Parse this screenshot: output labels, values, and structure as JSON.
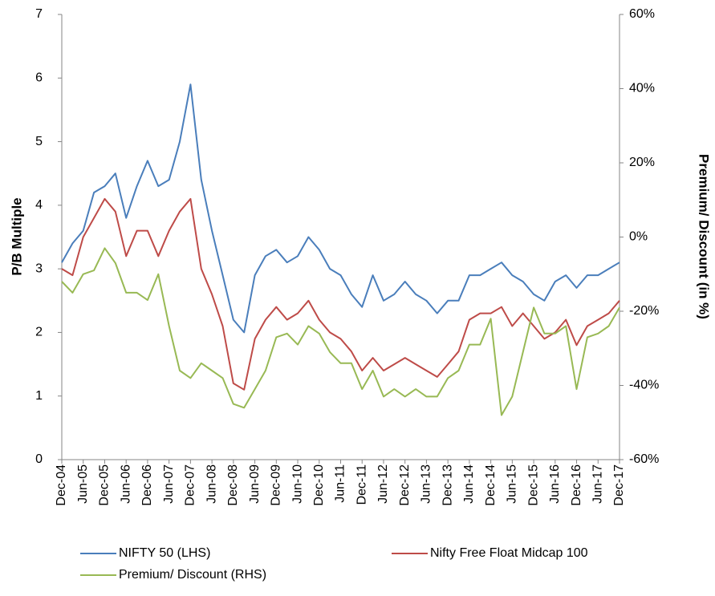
{
  "chart_data": {
    "type": "line",
    "y_label": "P/B Multiple",
    "y2_label": "Premium/ Discount (in %)",
    "categories": [
      "Dec-04",
      null,
      "Jun-05",
      null,
      "Dec-05",
      null,
      "Jun-06",
      null,
      "Dec-06",
      null,
      "Jun-07",
      null,
      "Dec-07",
      null,
      "Jun-08",
      null,
      "Dec-08",
      null,
      "Jun-09",
      null,
      "Dec-09",
      null,
      "Jun-10",
      null,
      "Dec-10",
      null,
      "Jun-11",
      null,
      "Dec-11",
      null,
      "Jun-12",
      null,
      "Dec-12",
      null,
      "Jun-13",
      null,
      "Dec-13",
      null,
      "Jun-14",
      null,
      "Dec-14",
      null,
      "Jun-15",
      null,
      "Dec-15",
      null,
      "Jun-16",
      null,
      "Dec-16",
      null,
      "Jun-17",
      null,
      "Dec-17"
    ],
    "series": [
      {
        "name": "NIFTY 50 (LHS)",
        "color": "#4a7ebb",
        "values": [
          3.1,
          3.4,
          3.6,
          4.2,
          4.3,
          4.5,
          3.8,
          4.3,
          4.7,
          4.3,
          4.4,
          5.0,
          5.9,
          4.4,
          3.6,
          2.9,
          2.2,
          2.0,
          2.9,
          3.2,
          3.3,
          3.1,
          3.2,
          3.5,
          3.3,
          3.0,
          2.9,
          2.6,
          2.4,
          2.9,
          2.5,
          2.6,
          2.8,
          2.6,
          2.5,
          2.3,
          2.5,
          2.5,
          2.9,
          2.9,
          3.0,
          3.1,
          2.9,
          2.8,
          2.6,
          2.5,
          2.8,
          2.9,
          2.7,
          2.9,
          2.9,
          3.0,
          3.1
        ]
      },
      {
        "name": "Nifty Free Float Midcap 100",
        "color": "#be4b48",
        "values": [
          3.0,
          2.9,
          3.5,
          3.8,
          4.1,
          3.9,
          3.2,
          3.6,
          3.6,
          3.2,
          3.6,
          3.9,
          4.1,
          3.0,
          2.6,
          2.1,
          1.2,
          1.1,
          1.9,
          2.2,
          2.4,
          2.2,
          2.3,
          2.5,
          2.2,
          2.0,
          1.9,
          1.7,
          1.4,
          1.6,
          1.4,
          1.5,
          1.6,
          1.5,
          1.4,
          1.3,
          1.5,
          1.7,
          2.2,
          2.3,
          2.3,
          2.4,
          2.1,
          2.3,
          2.1,
          1.9,
          2.0,
          2.2,
          1.8,
          2.1,
          2.2,
          2.3,
          2.5
        ]
      },
      {
        "name": "Premium/ Discount (RHS)",
        "color": "#98b954",
        "axis": "y2",
        "values": [
          -12,
          -15,
          -10,
          -9,
          -3,
          -7,
          -15,
          -15,
          -17,
          -10,
          -24,
          -36,
          -38,
          -34,
          -36,
          -38,
          -45,
          -46,
          -41,
          -36,
          -27,
          -26,
          -29,
          -24,
          -26,
          -31,
          -34,
          -34,
          -41,
          -36,
          -43,
          -41,
          -43,
          -41,
          -43,
          -43,
          -38,
          -36,
          -29,
          -29,
          -22,
          -48,
          -43,
          -31,
          -19,
          -26,
          -26,
          -24,
          -41,
          -27,
          -26,
          -24,
          -19
        ]
      }
    ],
    "ylim": [
      0,
      7
    ],
    "yticks": [
      0,
      1,
      2,
      3,
      4,
      5,
      6,
      7
    ],
    "y2lim": [
      -60,
      60
    ],
    "y2ticks": [
      {
        "value": -60,
        "label": "-60%"
      },
      {
        "value": -40,
        "label": "-40%"
      },
      {
        "value": -20,
        "label": "-20%"
      },
      {
        "value": 0,
        "label": "0%"
      },
      {
        "value": 20,
        "label": "20%"
      },
      {
        "value": 40,
        "label": "40%"
      },
      {
        "value": 60,
        "label": "60%"
      }
    ],
    "grid": false,
    "legend": "bottom"
  }
}
